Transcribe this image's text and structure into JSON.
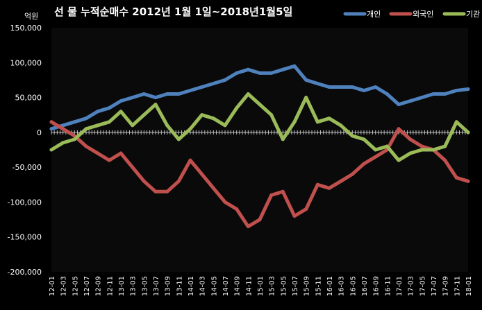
{
  "chart_data": {
    "type": "line",
    "title": "선 물 누적순매수 2012년 1월 1일~2018년1월5일",
    "ylabel": "억원",
    "ylim": [
      -200000,
      150000
    ],
    "yticks": [
      150000,
      100000,
      50000,
      0,
      -50000,
      -100000,
      -150000,
      -200000
    ],
    "ytick_labels": [
      "150,000",
      "100,000",
      "50,000",
      "0",
      "-50,000",
      "-100,000",
      "-150,000",
      "-200,000"
    ],
    "legend_position": "top-right",
    "grid": false,
    "x_labels": [
      "12-01",
      "12-03",
      "12-05",
      "12-07",
      "12-09",
      "12-11",
      "13-01",
      "13-03",
      "13-05",
      "13-07",
      "13-09",
      "13-11",
      "14-01",
      "14-03",
      "14-05",
      "14-07",
      "14-09",
      "14-11",
      "15-01",
      "15-03",
      "15-05",
      "15-07",
      "15-09",
      "15-11",
      "16-01",
      "16-03",
      "16-05",
      "16-07",
      "16-09",
      "16-11",
      "17-01",
      "17-03",
      "17-05",
      "17-07",
      "17-09",
      "17-11",
      "18-01"
    ],
    "series": [
      {
        "name": "개인",
        "color": "#4F81BD",
        "values": [
          5000,
          10000,
          15000,
          20000,
          30000,
          35000,
          45000,
          50000,
          55000,
          50000,
          55000,
          55000,
          60000,
          65000,
          70000,
          75000,
          85000,
          90000,
          85000,
          85000,
          90000,
          95000,
          75000,
          70000,
          65000,
          65000,
          65000,
          60000,
          65000,
          55000,
          40000,
          45000,
          50000,
          55000,
          55000,
          60000,
          62000
        ]
      },
      {
        "name": "외국인",
        "color": "#C0504D",
        "values": [
          15000,
          5000,
          -5000,
          -20000,
          -30000,
          -40000,
          -30000,
          -50000,
          -70000,
          -85000,
          -85000,
          -70000,
          -40000,
          -60000,
          -80000,
          -100000,
          -110000,
          -135000,
          -125000,
          -90000,
          -85000,
          -120000,
          -110000,
          -75000,
          -80000,
          -70000,
          -60000,
          -45000,
          -35000,
          -25000,
          5000,
          -10000,
          -20000,
          -25000,
          -40000,
          -65000,
          -70000
        ]
      },
      {
        "name": "기관",
        "color": "#9BBB59",
        "values": [
          -25000,
          -15000,
          -10000,
          5000,
          10000,
          15000,
          30000,
          10000,
          25000,
          40000,
          10000,
          -10000,
          5000,
          25000,
          20000,
          10000,
          35000,
          55000,
          40000,
          25000,
          -10000,
          15000,
          50000,
          15000,
          20000,
          10000,
          -5000,
          -10000,
          -25000,
          -20000,
          -40000,
          -30000,
          -25000,
          -25000,
          -20000,
          15000,
          0
        ]
      }
    ]
  }
}
